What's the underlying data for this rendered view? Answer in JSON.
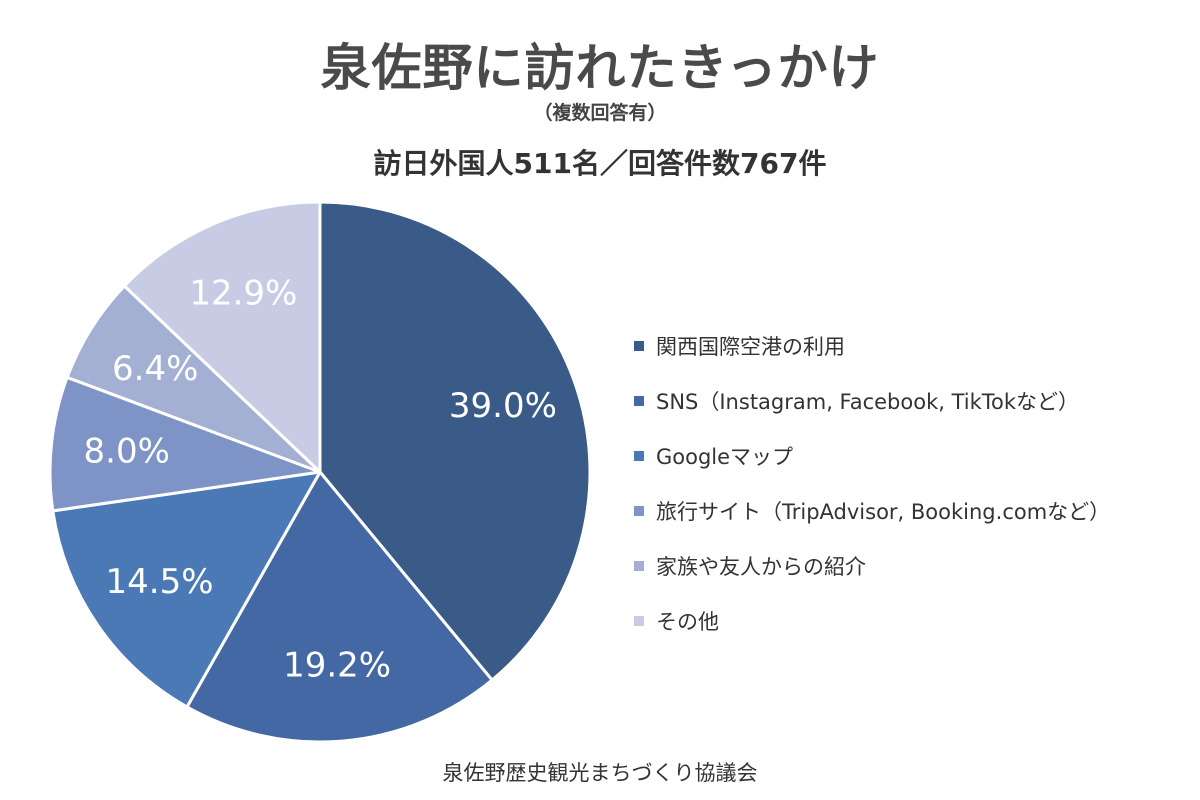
{
  "chart_data": {
    "type": "pie",
    "title": "泉佐野に訪れたきっかけ",
    "subtitle": "（複数回答有）",
    "subtitle2": "訪日外国人511名／回答件数767件",
    "source": "泉佐野歴史観光まちづくり協議会",
    "legend_position": "right",
    "slices": [
      {
        "label": "関西国際空港の利用",
        "value": 39.0,
        "display": "39.0%",
        "color": "#3a5a88"
      },
      {
        "label": "SNS（Instagram, Facebook, TikTokなど）",
        "value": 19.2,
        "display": "19.2%",
        "color": "#4468a3"
      },
      {
        "label": "Googleマップ",
        "value": 14.5,
        "display": "14.5%",
        "color": "#4a79b6"
      },
      {
        "label": "旅行サイト（TripAdvisor, Booking.comなど）",
        "value": 8.0,
        "display": "8.0%",
        "color": "#7e93c6"
      },
      {
        "label": "家族や友人からの紹介",
        "value": 6.4,
        "display": "6.4%",
        "color": "#a3afd3"
      },
      {
        "label": "その他",
        "value": 12.9,
        "display": "12.9%",
        "color": "#c7cce4"
      }
    ]
  }
}
